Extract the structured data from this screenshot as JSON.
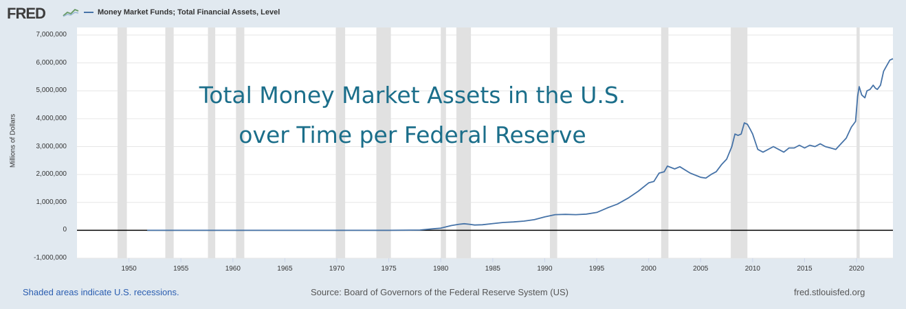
{
  "header": {
    "logo_text": "FRED",
    "legend_label": "Money Market Funds; Total Financial Assets, Level"
  },
  "annotation": {
    "line1": "Total Money Market Assets in the U.S.",
    "line2": "over Time per Federal Reserve"
  },
  "footer": {
    "recession_note": "Shaded areas indicate U.S. recessions.",
    "source": "Source: Board of Governors of the Federal Reserve System (US)",
    "site": "fred.stlouisfed.org"
  },
  "colors": {
    "series": "#4572a7",
    "recession": "#e1e1e1",
    "annotation": "#1b6e8a"
  },
  "chart_data": {
    "type": "line",
    "title": "Money Market Funds; Total Financial Assets, Level",
    "xlabel": "",
    "ylabel": "Millions of Dollars",
    "xlim": [
      1945,
      2023.5
    ],
    "ylim": [
      -1000000,
      7000000
    ],
    "x_ticks": [
      1950,
      1955,
      1960,
      1965,
      1970,
      1975,
      1980,
      1985,
      1990,
      1995,
      2000,
      2005,
      2010,
      2015,
      2020
    ],
    "x_tick_labels": [
      "1950",
      "1955",
      "1960",
      "1965",
      "1970",
      "1975",
      "1980",
      "1985",
      "1990",
      "1995",
      "2000",
      "2005",
      "2010",
      "2015",
      "2020"
    ],
    "y_ticks": [
      -1000000,
      0,
      1000000,
      2000000,
      3000000,
      4000000,
      5000000,
      6000000,
      7000000
    ],
    "y_tick_labels": [
      "-1,000,000",
      "0",
      "1,000,000",
      "2,000,000",
      "3,000,000",
      "4,000,000",
      "5,000,000",
      "6,000,000",
      "7,000,000"
    ],
    "recessions": [
      [
        1948.9,
        1949.8
      ],
      [
        1953.5,
        1954.3
      ],
      [
        1957.6,
        1958.3
      ],
      [
        1960.3,
        1961.1
      ],
      [
        1969.9,
        1970.8
      ],
      [
        1973.8,
        1975.2
      ],
      [
        1980.0,
        1980.5
      ],
      [
        1981.5,
        1982.9
      ],
      [
        1990.5,
        1991.2
      ],
      [
        2001.2,
        2001.9
      ],
      [
        2007.9,
        2009.5
      ],
      [
        2020.0,
        2020.3
      ]
    ],
    "series": [
      {
        "name": "Money Market Funds; Total Financial Assets, Level",
        "x": [
          1951.75,
          1955,
          1960,
          1965,
          1970,
          1975,
          1978,
          1979,
          1980,
          1981,
          1981.75,
          1982.25,
          1982.75,
          1983.25,
          1984,
          1985,
          1986,
          1987,
          1988,
          1989,
          1990,
          1991,
          1992,
          1993,
          1994,
          1995,
          1996,
          1997,
          1998,
          1999,
          2000,
          2000.5,
          2001,
          2001.5,
          2001.8,
          2002.5,
          2003,
          2004,
          2005,
          2005.5,
          2006,
          2006.5,
          2007,
          2007.5,
          2008,
          2008.3,
          2008.6,
          2008.9,
          2009.2,
          2009.5,
          2009.8,
          2010,
          2010.5,
          2011,
          2012,
          2012.5,
          2013,
          2013.5,
          2014,
          2014.5,
          2015,
          2015.5,
          2016,
          2016.5,
          2017,
          2017.5,
          2018,
          2018.5,
          2019,
          2019.5,
          2019.9,
          2020.1,
          2020.25,
          2020.5,
          2020.8,
          2021,
          2021.3,
          2021.6,
          2021.8,
          2022,
          2022.3,
          2022.6,
          2022.9,
          2023.2,
          2023.5
        ],
        "values": [
          0,
          0,
          0,
          0,
          0,
          0,
          10000,
          45000,
          75000,
          170000,
          215000,
          235000,
          215000,
          190000,
          200000,
          240000,
          280000,
          300000,
          330000,
          380000,
          480000,
          560000,
          570000,
          560000,
          580000,
          640000,
          800000,
          940000,
          1150000,
          1400000,
          1700000,
          1750000,
          2050000,
          2100000,
          2300000,
          2200000,
          2280000,
          2050000,
          1900000,
          1870000,
          2000000,
          2100000,
          2350000,
          2550000,
          3000000,
          3450000,
          3400000,
          3450000,
          3850000,
          3800000,
          3600000,
          3450000,
          2900000,
          2800000,
          3000000,
          2900000,
          2800000,
          2950000,
          2950000,
          3050000,
          2950000,
          3050000,
          3000000,
          3100000,
          3000000,
          2950000,
          2900000,
          3100000,
          3300000,
          3700000,
          3900000,
          4800000,
          5150000,
          4850000,
          4750000,
          5000000,
          5050000,
          5200000,
          5100000,
          5050000,
          5200000,
          5700000,
          5900000,
          6100000,
          6150000
        ]
      }
    ]
  }
}
